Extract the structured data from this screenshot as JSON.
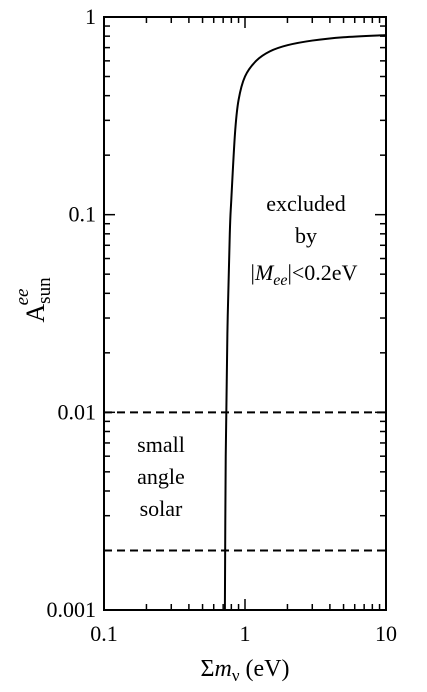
{
  "chart_data": {
    "type": "line",
    "x_scale": "log",
    "y_scale": "log",
    "xlim": [
      0.1,
      10
    ],
    "ylim": [
      0.001,
      1
    ],
    "x_ticks": [
      {
        "value": 0.1,
        "label": "0.1"
      },
      {
        "value": 1,
        "label": "1"
      },
      {
        "value": 10,
        "label": "10"
      }
    ],
    "y_ticks": [
      {
        "value": 0.001,
        "label": "0.001"
      },
      {
        "value": 0.01,
        "label": "0.01"
      },
      {
        "value": 0.1,
        "label": "0.1"
      },
      {
        "value": 1,
        "label": "1"
      }
    ],
    "xlabel": {
      "prefix": "Σ",
      "symbol": "m",
      "subscript": "ν",
      "unit": " (eV)"
    },
    "ylabel": {
      "base": "A",
      "superscript": "ee",
      "subscript": "sun"
    },
    "grid": false,
    "series": [
      {
        "style": "solid",
        "x": [
          0.72,
          0.73,
          0.75,
          0.78,
          0.8,
          0.85,
          0.9,
          1.0,
          1.2,
          1.5,
          2.0,
          3.0,
          5.0,
          10.0
        ],
        "y": [
          0.001,
          0.006,
          0.025,
          0.08,
          0.12,
          0.26,
          0.38,
          0.5,
          0.6,
          0.67,
          0.72,
          0.76,
          0.79,
          0.81
        ]
      },
      {
        "style": "dashed",
        "x": [
          0.1,
          10
        ],
        "y": [
          0.01,
          0.01
        ]
      },
      {
        "style": "dashed",
        "x": [
          0.1,
          10
        ],
        "y": [
          0.002,
          0.002
        ]
      }
    ],
    "annotations": [
      {
        "id": "excluded",
        "lines": [
          "excluded",
          "by"
        ],
        "condition": {
          "symbol": "M",
          "subscript": "ee",
          "relation": "<0.2eV"
        }
      },
      {
        "id": "small-angle",
        "lines": [
          "small",
          "angle",
          "solar"
        ]
      }
    ]
  }
}
